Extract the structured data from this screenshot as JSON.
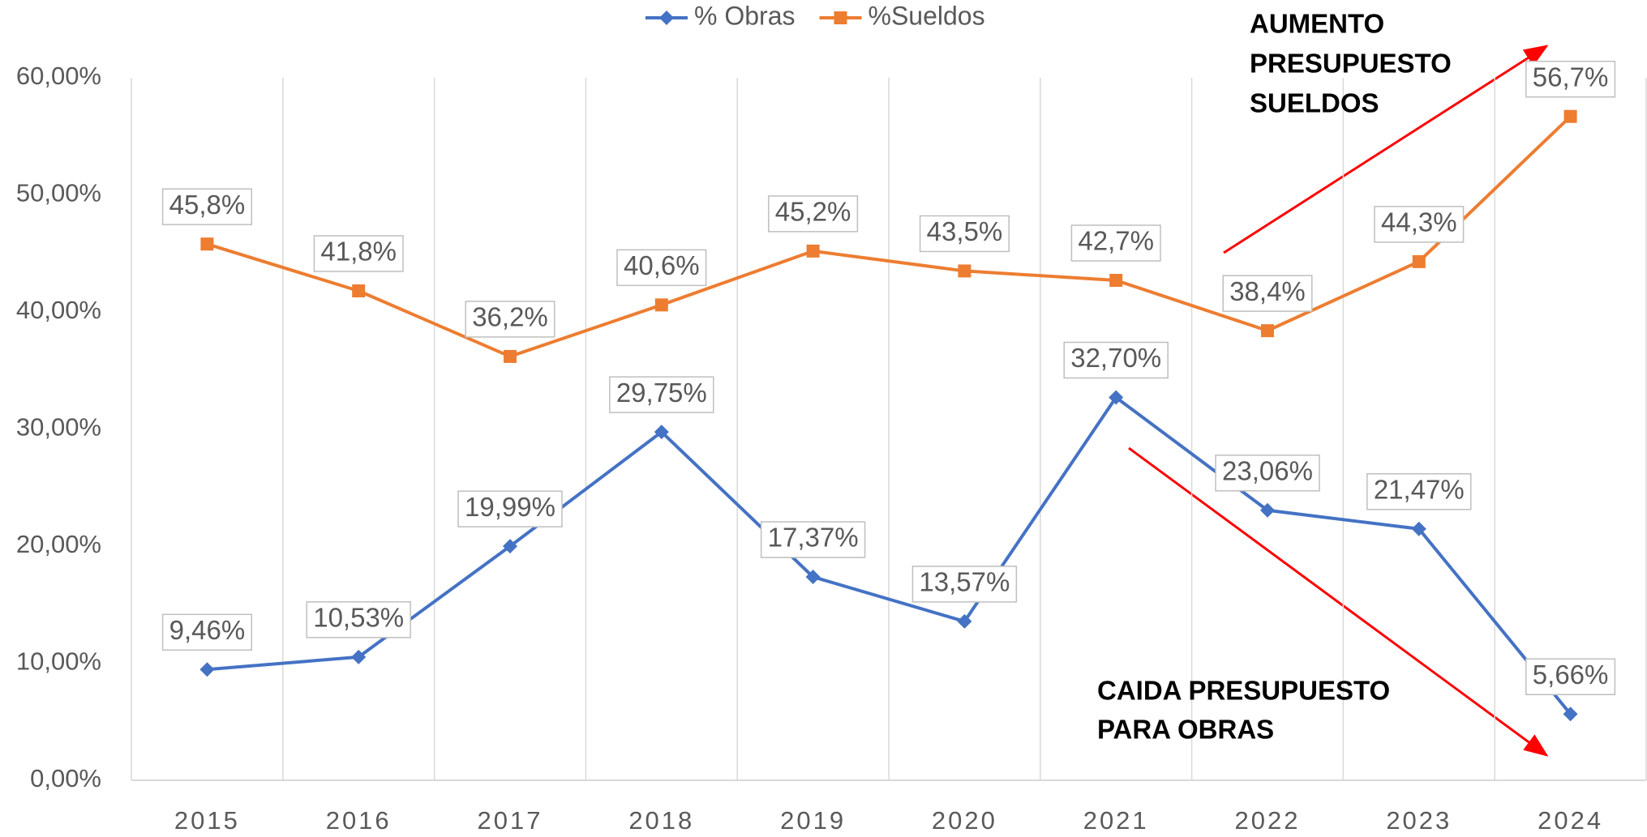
{
  "chart_data": {
    "type": "line",
    "categories": [
      "2015",
      "2016",
      "2017",
      "2018",
      "2019",
      "2020",
      "2021",
      "2022",
      "2023",
      "2024"
    ],
    "series": [
      {
        "name": "% Obras",
        "color": "#4472c4",
        "marker": "diamond",
        "values": [
          9.46,
          10.53,
          19.99,
          29.75,
          17.37,
          13.57,
          32.7,
          23.06,
          21.47,
          5.66
        ],
        "value_labels": [
          "9,46%",
          "10,53%",
          "19,99%",
          "29,75%",
          "17,37%",
          "13,57%",
          "32,70%",
          "23,06%",
          "21,47%",
          "5,66%"
        ]
      },
      {
        "name": "%Sueldos",
        "color": "#ed7d31",
        "marker": "square",
        "values": [
          45.8,
          41.8,
          36.2,
          40.6,
          45.2,
          43.5,
          42.7,
          38.4,
          44.3,
          56.7
        ],
        "value_labels": [
          "45,8%",
          "41,8%",
          "36,2%",
          "40,6%",
          "45,2%",
          "43,5%",
          "42,7%",
          "38,4%",
          "44,3%",
          "56,7%"
        ]
      }
    ],
    "ylim": [
      0,
      60
    ],
    "yticks": [
      {
        "value": 0,
        "label": "0,00%"
      },
      {
        "value": 10,
        "label": "10,00%"
      },
      {
        "value": 20,
        "label": "20,00%"
      },
      {
        "value": 30,
        "label": "30,00%"
      },
      {
        "value": 40,
        "label": "40,00%"
      },
      {
        "value": 50,
        "label": "50,00%"
      },
      {
        "value": 60,
        "label": "60,00%"
      }
    ],
    "grid": "vertical",
    "legend": "top",
    "annotations": [
      {
        "lines": [
          "AUMENTO",
          "PRESUPUESTO",
          "SUELDOS"
        ]
      },
      {
        "lines": [
          "CAIDA  PRESUPUESTO",
          "PARA  OBRAS"
        ]
      }
    ]
  }
}
